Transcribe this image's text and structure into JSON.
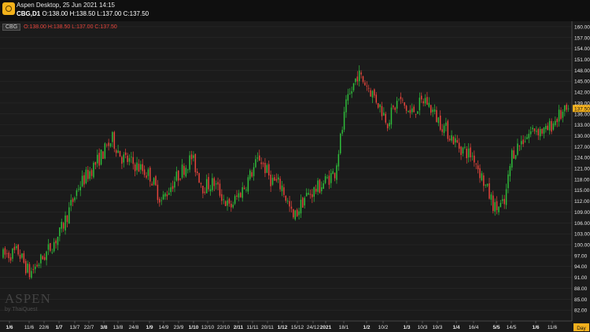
{
  "header": {
    "title": "Aspen Desktop, 25 Jun 2021 14:15",
    "symbol": "CBG,D1",
    "ohlc": "O:138.00 H:138.50 L:137.00 C:137.50",
    "logo_icon": "aspen-logo-icon"
  },
  "series_label": {
    "name": "CBG",
    "ohlc": "O:138.00 H:138.50 L:137.00 C:137.50"
  },
  "watermark": {
    "main": "ASPEN",
    "sub": "by ThaiQuest"
  },
  "colors": {
    "background": "#1b1b1b",
    "grid": "#2b2b2b",
    "up": "#2fbf3b",
    "down": "#e8453c",
    "price_badge": "#f2b01e",
    "axis_text": "#e6e6e6"
  },
  "chart_data": {
    "type": "candlestick",
    "symbol": "CBG",
    "timeframe": "D1",
    "ylim": [
      79,
      161.5
    ],
    "y_ticks": [
      "160.00",
      "157.00",
      "154.00",
      "151.00",
      "148.00",
      "145.00",
      "142.00",
      "139.00",
      "136.00",
      "133.00",
      "130.00",
      "127.00",
      "124.00",
      "121.00",
      "118.00",
      "115.00",
      "112.00",
      "109.00",
      "106.00",
      "103.00",
      "100.00",
      "97.00",
      "94.00",
      "91.00",
      "88.00",
      "85.00",
      "82.00"
    ],
    "x_ticks": [
      "1/6",
      "11/6",
      "22/6",
      "1/7",
      "13/7",
      "22/7",
      "3/8",
      "13/8",
      "24/8",
      "1/9",
      "14/9",
      "23/9",
      "1/10",
      "12/10",
      "22/10",
      "2/11",
      "11/11",
      "20/11",
      "1/12",
      "15/12",
      "24/12",
      "2021",
      "18/1",
      "1/2",
      "10/2",
      "1/3",
      "10/3",
      "19/3",
      "1/4",
      "16/4",
      "5/5",
      "14/5",
      "1/6",
      "11/6"
    ],
    "bold_ticks": [
      "1/6",
      "1/7",
      "3/8",
      "1/9",
      "1/10",
      "2/11",
      "1/12",
      "2021",
      "1/2",
      "1/3",
      "1/4",
      "5/5",
      "1/6"
    ],
    "x_unit": "Day",
    "last_price": "137.50",
    "trend_anchors": [
      {
        "i": 0,
        "p": 97
      },
      {
        "i": 8,
        "p": 98
      },
      {
        "i": 14,
        "p": 92
      },
      {
        "i": 22,
        "p": 97
      },
      {
        "i": 30,
        "p": 103
      },
      {
        "i": 40,
        "p": 116
      },
      {
        "i": 50,
        "p": 123
      },
      {
        "i": 58,
        "p": 129
      },
      {
        "i": 63,
        "p": 124
      },
      {
        "i": 70,
        "p": 122
      },
      {
        "i": 78,
        "p": 119
      },
      {
        "i": 84,
        "p": 112
      },
      {
        "i": 90,
        "p": 117
      },
      {
        "i": 100,
        "p": 124
      },
      {
        "i": 106,
        "p": 116
      },
      {
        "i": 112,
        "p": 117
      },
      {
        "i": 120,
        "p": 110
      },
      {
        "i": 128,
        "p": 116
      },
      {
        "i": 136,
        "p": 124
      },
      {
        "i": 142,
        "p": 118
      },
      {
        "i": 148,
        "p": 116
      },
      {
        "i": 154,
        "p": 107
      },
      {
        "i": 160,
        "p": 113
      },
      {
        "i": 168,
        "p": 116
      },
      {
        "i": 176,
        "p": 120
      },
      {
        "i": 182,
        "p": 138
      },
      {
        "i": 188,
        "p": 147
      },
      {
        "i": 193,
        "p": 144
      },
      {
        "i": 198,
        "p": 140
      },
      {
        "i": 204,
        "p": 134
      },
      {
        "i": 210,
        "p": 140
      },
      {
        "i": 216,
        "p": 136
      },
      {
        "i": 224,
        "p": 140
      },
      {
        "i": 230,
        "p": 135
      },
      {
        "i": 236,
        "p": 131
      },
      {
        "i": 242,
        "p": 127
      },
      {
        "i": 250,
        "p": 124
      },
      {
        "i": 256,
        "p": 116
      },
      {
        "i": 261,
        "p": 110
      },
      {
        "i": 266,
        "p": 111
      },
      {
        "i": 270,
        "p": 125
      },
      {
        "i": 276,
        "p": 129
      },
      {
        "i": 282,
        "p": 132
      },
      {
        "i": 288,
        "p": 131
      },
      {
        "i": 294,
        "p": 135
      },
      {
        "i": 300,
        "p": 137
      }
    ],
    "candle_count": 301
  }
}
